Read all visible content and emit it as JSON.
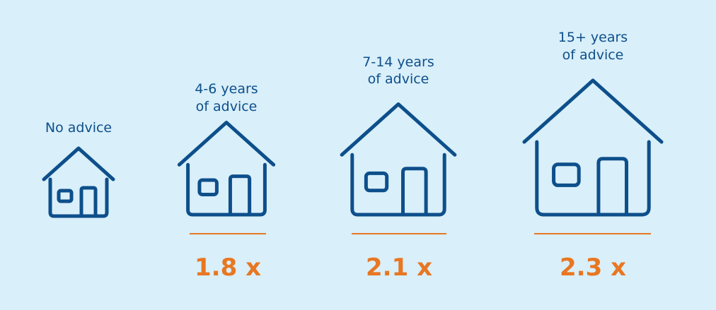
{
  "items": [
    {
      "label": [
        "No advice"
      ]
    },
    {
      "label": [
        "4-6 years",
        "of advice"
      ],
      "multiplier": "1.8 x"
    },
    {
      "label": [
        "7-14 years",
        "of advice"
      ],
      "multiplier": "2.1 x"
    },
    {
      "label": [
        "15+ years",
        "of advice"
      ],
      "multiplier": "2.3 x"
    }
  ]
}
